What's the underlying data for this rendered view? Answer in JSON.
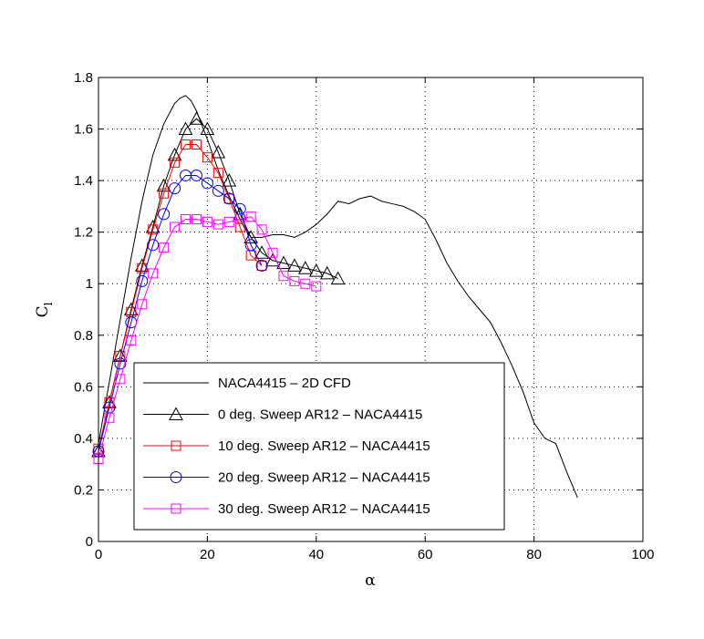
{
  "chart_data": {
    "type": "line",
    "title": "",
    "xlabel": "α",
    "ylabel": "C",
    "ylabel_sub": "l",
    "xlim": [
      0,
      100
    ],
    "ylim": [
      0,
      1.8
    ],
    "xticks": [
      0,
      20,
      40,
      60,
      80,
      100
    ],
    "yticks": [
      0,
      0.2,
      0.4,
      0.6,
      0.8,
      1,
      1.2,
      1.4,
      1.6,
      1.8
    ],
    "xtick_labels": [
      "0",
      "20",
      "40",
      "60",
      "80",
      "100"
    ],
    "ytick_labels": [
      "0",
      "0.2",
      "0.4",
      "0.6",
      "0.8",
      "1",
      "1.2",
      "1.4",
      "1.6",
      "1.8"
    ],
    "grid": true,
    "legend_position": "lower-left",
    "series": [
      {
        "name": "NACA4415 – 2D CFD",
        "color": "#000000",
        "marker": "none",
        "x": [
          0,
          2,
          4,
          6,
          8,
          10,
          12,
          14,
          15,
          16,
          17,
          18,
          20,
          22,
          24,
          26,
          27,
          28,
          30,
          32,
          34,
          36,
          38,
          40,
          42,
          44,
          46,
          48,
          50,
          52,
          54,
          56,
          58,
          60,
          62,
          64,
          66,
          68,
          70,
          72,
          74,
          76,
          78,
          80,
          82,
          84,
          86,
          88
        ],
        "y": [
          0.38,
          0.62,
          0.86,
          1.1,
          1.32,
          1.5,
          1.62,
          1.7,
          1.72,
          1.73,
          1.71,
          1.67,
          1.56,
          1.44,
          1.34,
          1.25,
          1.21,
          1.18,
          1.18,
          1.19,
          1.19,
          1.18,
          1.2,
          1.23,
          1.27,
          1.32,
          1.31,
          1.33,
          1.34,
          1.32,
          1.31,
          1.3,
          1.28,
          1.25,
          1.17,
          1.08,
          1.01,
          0.95,
          0.9,
          0.85,
          0.77,
          0.68,
          0.58,
          0.46,
          0.4,
          0.38,
          0.27,
          0.17
        ]
      },
      {
        "name": "0 deg. Sweep AR12 – NACA4415",
        "color": "#000000",
        "marker": "triangle",
        "x": [
          0,
          2,
          4,
          6,
          8,
          10,
          12,
          14,
          16,
          18,
          20,
          22,
          24,
          26,
          28,
          30,
          32,
          34,
          36,
          38,
          40,
          42,
          44
        ],
        "y": [
          0.35,
          0.54,
          0.72,
          0.9,
          1.07,
          1.22,
          1.38,
          1.5,
          1.6,
          1.64,
          1.6,
          1.51,
          1.4,
          1.27,
          1.18,
          1.12,
          1.09,
          1.08,
          1.07,
          1.06,
          1.05,
          1.04,
          1.02
        ]
      },
      {
        "name": "10 deg. Sweep AR12 – NACA4415",
        "color": "#ff0000",
        "marker": "square",
        "x": [
          0,
          2,
          4,
          6,
          8,
          10,
          12,
          14,
          16,
          18,
          20,
          22,
          24,
          26,
          28,
          30
        ],
        "y": [
          0.36,
          0.54,
          0.72,
          0.89,
          1.06,
          1.21,
          1.35,
          1.47,
          1.54,
          1.54,
          1.49,
          1.43,
          1.33,
          1.22,
          1.11,
          1.07
        ]
      },
      {
        "name": "20 deg. Sweep AR12 – NACA4415",
        "color": "#0000ff",
        "marker": "circle",
        "x": [
          0,
          2,
          4,
          6,
          8,
          10,
          12,
          14,
          16,
          18,
          20,
          22,
          24,
          26,
          28,
          30
        ],
        "y": [
          0.35,
          0.52,
          0.69,
          0.85,
          1.01,
          1.15,
          1.27,
          1.37,
          1.42,
          1.42,
          1.39,
          1.36,
          1.33,
          1.29,
          1.15,
          1.07
        ]
      },
      {
        "name": "30 deg. Sweep AR12 – NACA4415",
        "color": "#ff00ff",
        "marker": "square",
        "x": [
          0,
          2,
          4,
          6,
          8,
          10,
          12,
          14,
          16,
          18,
          20,
          22,
          24,
          26,
          28,
          30,
          32,
          34,
          36,
          38,
          40
        ],
        "y": [
          0.32,
          0.48,
          0.63,
          0.78,
          0.92,
          1.04,
          1.14,
          1.22,
          1.25,
          1.25,
          1.24,
          1.23,
          1.24,
          1.25,
          1.26,
          1.21,
          1.12,
          1.03,
          1.01,
          1.0,
          0.99
        ]
      }
    ]
  }
}
